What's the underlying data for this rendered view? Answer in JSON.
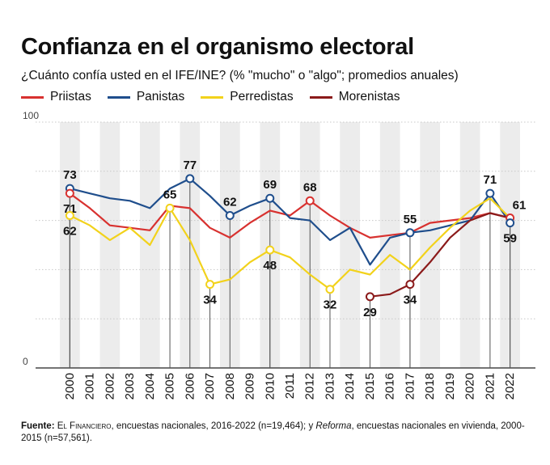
{
  "header": {
    "title": "Confianza en el organismo electoral",
    "subtitle": "¿Cuánto confía usted en el IFE/INE? (% \"mucho\" o \"algo\"; promedios anuales)"
  },
  "colors": {
    "priistas": "#d8312f",
    "panistas": "#1f4e8c",
    "perredistas": "#f2d21b",
    "morenistas": "#8b1a1a",
    "band": "#ececec",
    "grid": "#c8c8c8"
  },
  "chart_data": {
    "type": "line",
    "title": "Confianza en el organismo electoral",
    "subtitle": "¿Cuánto confía usted en el IFE/INE? (% \"mucho\" o \"algo\"; promedios anuales)",
    "x": [
      "2000",
      "2001",
      "2002",
      "2003",
      "2004",
      "2005",
      "2006",
      "2007",
      "2008",
      "2009",
      "2010",
      "2011",
      "2012",
      "2013",
      "2014",
      "2015",
      "2016",
      "2017",
      "2018",
      "2019",
      "2020",
      "2021",
      "2022"
    ],
    "ylim": [
      0,
      100
    ],
    "y_ticks": [
      "0",
      "100"
    ],
    "grid": true,
    "legend_position": "top-left",
    "series": [
      {
        "name": "Priistas",
        "key": "priistas",
        "values": [
          71,
          65,
          58,
          57,
          56,
          66,
          65,
          57,
          53,
          59,
          64,
          62,
          68,
          62,
          57,
          53,
          54,
          55,
          59,
          60,
          61,
          63,
          61
        ]
      },
      {
        "name": "Panistas",
        "key": "panistas",
        "values": [
          73,
          71,
          69,
          68,
          65,
          73,
          77,
          70,
          62,
          66,
          69,
          61,
          60,
          52,
          57,
          42,
          53,
          55,
          56,
          58,
          60,
          71,
          59
        ]
      },
      {
        "name": "Perredistas",
        "key": "perredistas",
        "values": [
          62,
          58,
          52,
          57,
          50,
          65,
          52,
          34,
          36,
          43,
          48,
          45,
          38,
          32,
          40,
          38,
          46,
          40,
          49,
          57,
          64,
          69,
          61
        ]
      },
      {
        "name": "Morenistas",
        "key": "morenistas",
        "values": [
          null,
          null,
          null,
          null,
          null,
          null,
          null,
          null,
          null,
          null,
          null,
          null,
          null,
          null,
          null,
          29,
          30,
          34,
          43,
          53,
          60,
          63,
          61
        ]
      }
    ],
    "annotations": [
      {
        "label": "73",
        "series": "panistas",
        "x": "2000",
        "value": 73,
        "pos": "above",
        "marker": true
      },
      {
        "label": "71",
        "series": "priistas",
        "x": "2000",
        "value": 71,
        "pos": "below",
        "marker": true
      },
      {
        "label": "62",
        "series": "perredistas",
        "x": "2000",
        "value": 62,
        "pos": "below",
        "marker": true
      },
      {
        "label": "65",
        "series": "perredistas",
        "x": "2005",
        "value": 65,
        "pos": "above",
        "marker": true
      },
      {
        "label": "77",
        "series": "panistas",
        "x": "2006",
        "value": 77,
        "pos": "above",
        "marker": true
      },
      {
        "label": "34",
        "series": "perredistas",
        "x": "2007",
        "value": 34,
        "pos": "below",
        "marker": true
      },
      {
        "label": "62",
        "series": "panistas",
        "x": "2008",
        "value": 62,
        "pos": "above",
        "marker": true
      },
      {
        "label": "69",
        "series": "panistas",
        "x": "2010",
        "value": 69,
        "pos": "above",
        "marker": true
      },
      {
        "label": "48",
        "series": "perredistas",
        "x": "2010",
        "value": 48,
        "pos": "below",
        "marker": true
      },
      {
        "label": "68",
        "series": "priistas",
        "x": "2012",
        "value": 68,
        "pos": "above",
        "marker": true
      },
      {
        "label": "32",
        "series": "perredistas",
        "x": "2013",
        "value": 32,
        "pos": "below",
        "marker": true
      },
      {
        "label": "29",
        "series": "morenistas",
        "x": "2015",
        "value": 29,
        "pos": "below",
        "marker": true
      },
      {
        "label": "55",
        "series": "panistas",
        "x": "2017",
        "value": 55,
        "pos": "above",
        "marker": true
      },
      {
        "label": "34",
        "series": "morenistas",
        "x": "2017",
        "value": 34,
        "pos": "below",
        "marker": true
      },
      {
        "label": "71",
        "series": "panistas",
        "x": "2021",
        "value": 71,
        "pos": "above",
        "marker": true
      },
      {
        "label": "61",
        "series": "priistas",
        "x": "2022",
        "value": 61,
        "pos": "above-right",
        "marker": true
      },
      {
        "label": "59",
        "series": "panistas",
        "x": "2022",
        "value": 59,
        "pos": "below",
        "marker": true
      }
    ]
  },
  "footer": {
    "source_label": "Fuente:",
    "source_org": "El Financiero",
    "source_part1": ", encuestas nacionales, 2016-2022 (n=19,464); y ",
    "source_pub": "Reforma",
    "source_part2": ", encuestas nacionales en vivienda, 2000-2015 (n=57,561)."
  }
}
